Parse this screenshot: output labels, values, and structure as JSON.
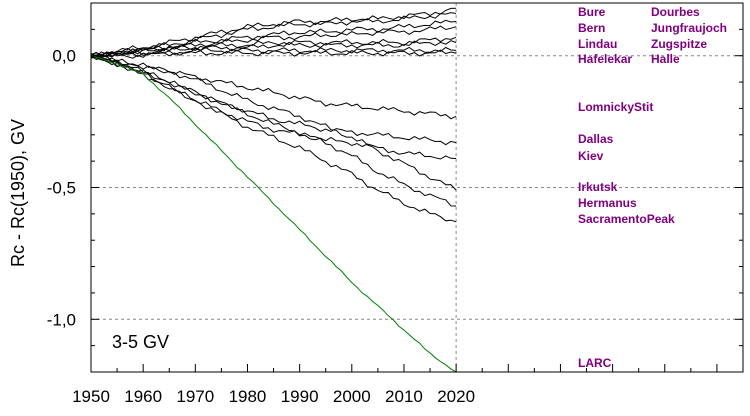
{
  "chart_data": {
    "type": "line",
    "ylabel": "Rc - Rc(1950), GV",
    "annotation": "3-5 GV",
    "xlim": [
      1950,
      2075
    ],
    "ylim": [
      -1.2,
      0.2
    ],
    "x_ticks": [
      1950,
      1960,
      1970,
      1980,
      1990,
      2000,
      2010,
      2020
    ],
    "y_ticks": [
      -1.0,
      -0.5,
      0.0
    ],
    "y_tick_labels": [
      "-1,0",
      "-0,5",
      "0,0"
    ],
    "grid": "dashed at y ticks and x=2020",
    "colors": {
      "series": "#000000",
      "larc": "#008000",
      "labels": "#800080"
    },
    "x": [
      1950,
      1955,
      1960,
      1965,
      1970,
      1975,
      1980,
      1985,
      1990,
      1995,
      2000,
      2005,
      2010,
      2015,
      2020
    ],
    "series": [
      {
        "name": "Bure",
        "values": [
          0.0,
          0.02,
          0.03,
          0.05,
          0.07,
          0.09,
          0.11,
          0.12,
          0.13,
          0.13,
          0.14,
          0.14,
          0.15,
          0.16,
          0.18
        ]
      },
      {
        "name": "Dourbes",
        "values": [
          0.0,
          0.01,
          0.03,
          0.04,
          0.06,
          0.08,
          0.1,
          0.11,
          0.12,
          0.12,
          0.13,
          0.13,
          0.14,
          0.15,
          0.16
        ]
      },
      {
        "name": "Bern",
        "values": [
          0.0,
          0.01,
          0.02,
          0.03,
          0.05,
          0.06,
          0.07,
          0.08,
          0.09,
          0.09,
          0.1,
          0.1,
          0.11,
          0.12,
          0.13
        ]
      },
      {
        "name": "Jungfraujoch",
        "values": [
          0.0,
          0.01,
          0.02,
          0.03,
          0.04,
          0.05,
          0.06,
          0.07,
          0.07,
          0.08,
          0.08,
          0.09,
          0.09,
          0.1,
          0.11
        ]
      },
      {
        "name": "Lindau",
        "values": [
          0.0,
          0.01,
          0.02,
          0.03,
          0.03,
          0.04,
          0.04,
          0.05,
          0.05,
          0.05,
          0.05,
          0.05,
          0.05,
          0.06,
          0.07
        ]
      },
      {
        "name": "Zugspitze",
        "values": [
          0.0,
          0.01,
          0.01,
          0.02,
          0.03,
          0.03,
          0.03,
          0.04,
          0.04,
          0.04,
          0.04,
          0.04,
          0.04,
          0.05,
          0.05
        ]
      },
      {
        "name": "Hafelekar",
        "values": [
          0.0,
          0.0,
          0.01,
          0.01,
          0.02,
          0.02,
          0.02,
          0.02,
          0.02,
          0.02,
          0.02,
          0.02,
          0.02,
          0.02,
          0.02
        ]
      },
      {
        "name": "Halle",
        "values": [
          0.0,
          0.0,
          0.0,
          0.01,
          0.01,
          0.01,
          0.01,
          0.01,
          0.01,
          0.01,
          0.01,
          0.01,
          0.01,
          0.01,
          0.01
        ]
      },
      {
        "name": "LomnickyStit",
        "values": [
          0.0,
          -0.02,
          -0.04,
          -0.06,
          -0.08,
          -0.1,
          -0.12,
          -0.14,
          -0.16,
          -0.18,
          -0.19,
          -0.2,
          -0.21,
          -0.22,
          -0.23
        ]
      },
      {
        "name": "Dallas",
        "values": [
          0.0,
          -0.03,
          -0.06,
          -0.1,
          -0.14,
          -0.18,
          -0.21,
          -0.24,
          -0.26,
          -0.28,
          -0.29,
          -0.3,
          -0.31,
          -0.32,
          -0.33
        ]
      },
      {
        "name": "Kiev",
        "values": [
          0.0,
          -0.03,
          -0.07,
          -0.12,
          -0.17,
          -0.21,
          -0.25,
          -0.28,
          -0.3,
          -0.32,
          -0.33,
          -0.35,
          -0.37,
          -0.38,
          -0.39
        ]
      },
      {
        "name": "Irkutsk",
        "values": [
          0.0,
          -0.02,
          -0.04,
          -0.06,
          -0.09,
          -0.13,
          -0.17,
          -0.2,
          -0.23,
          -0.27,
          -0.31,
          -0.36,
          -0.41,
          -0.46,
          -0.51
        ]
      },
      {
        "name": "Hermanus",
        "values": [
          0.0,
          -0.03,
          -0.06,
          -0.1,
          -0.14,
          -0.18,
          -0.22,
          -0.26,
          -0.29,
          -0.33,
          -0.38,
          -0.44,
          -0.49,
          -0.53,
          -0.57
        ]
      },
      {
        "name": "SacramentoPeak",
        "values": [
          0.0,
          -0.03,
          -0.07,
          -0.12,
          -0.17,
          -0.22,
          -0.27,
          -0.31,
          -0.35,
          -0.4,
          -0.45,
          -0.51,
          -0.56,
          -0.6,
          -0.63
        ]
      },
      {
        "name": "LARC",
        "values": [
          0.0,
          -0.03,
          -0.07,
          -0.16,
          -0.26,
          -0.36,
          -0.46,
          -0.56,
          -0.66,
          -0.76,
          -0.86,
          -0.95,
          -1.04,
          -1.13,
          -1.2
        ]
      }
    ]
  }
}
